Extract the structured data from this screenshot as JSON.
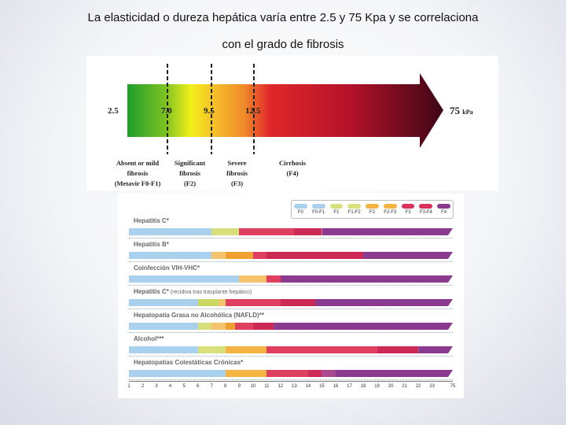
{
  "slide": {
    "title_line1": "La elasticidad o dureza hepática varía entre 2.5 y 75 Kpa y se correlaciona",
    "title_line2": "con el grado de fibrosis"
  },
  "scale": {
    "min_label": "2.5",
    "max_label": "75",
    "unit": "kPa",
    "cutoffs": [
      "7.0",
      "9.5",
      "12.5"
    ],
    "stages": [
      {
        "line1": "Absent or mild",
        "line2": "fibrosis",
        "line3": "(Metavir F0-F1)"
      },
      {
        "line1": "Significant",
        "line2": "fibrosis",
        "line3": "(F2)"
      },
      {
        "line1": "Severe",
        "line2": "fibrosis",
        "line3": "(F3)"
      },
      {
        "line1": "Cirrhosis",
        "line2": "(F4)",
        "line3": ""
      }
    ]
  },
  "chart_data": {
    "type": "bar",
    "legend": [
      {
        "label": "F0",
        "color": "#a9d0ec"
      },
      {
        "label": "F0-F1",
        "color": "#a9d0ec"
      },
      {
        "label": "F1",
        "color": "#d7e07a"
      },
      {
        "label": "F1-F2",
        "color": "#d7e07a"
      },
      {
        "label": "F2",
        "color": "#f3b443"
      },
      {
        "label": "F2-F3",
        "color": "#f3b443"
      },
      {
        "label": "F3",
        "color": "#d8325a"
      },
      {
        "label": "F3-F4",
        "color": "#d8325a"
      },
      {
        "label": "F4",
        "color": "#8a3a8f"
      }
    ],
    "x_ticks": [
      "1",
      "2",
      "3",
      "4",
      "5",
      "6",
      "7",
      "8",
      "9",
      "10",
      "11",
      "12",
      "13",
      "14",
      "15",
      "16",
      "17",
      "18",
      "19",
      "20",
      "21",
      "22",
      "23",
      "75"
    ],
    "rows": [
      {
        "label": "Hepatitis C",
        "mark": "*",
        "note": "",
        "segments": [
          {
            "from": 1,
            "to": 7,
            "color": "#a9d0ec"
          },
          {
            "from": 7,
            "to": 9,
            "color": "#d7e07a"
          },
          {
            "from": 9,
            "to": 12,
            "color": "#f3b443"
          },
          {
            "from": 9,
            "to": 13,
            "color": "#e04060"
          },
          {
            "from": 13,
            "to": 15,
            "color": "#cc2a55"
          },
          {
            "from": 15,
            "to": 75,
            "color": "#8a3a8f"
          }
        ]
      },
      {
        "label": "Hepatitis B",
        "mark": "*",
        "note": "",
        "segments": [
          {
            "from": 1,
            "to": 7,
            "color": "#a9d0ec"
          },
          {
            "from": 7,
            "to": 8,
            "color": "#f3c46b"
          },
          {
            "from": 8,
            "to": 10,
            "color": "#f0a030"
          },
          {
            "from": 10,
            "to": 11,
            "color": "#e04060"
          },
          {
            "from": 11,
            "to": 18,
            "color": "#cc2a55"
          },
          {
            "from": 18,
            "to": 75,
            "color": "#8a3a8f"
          }
        ]
      },
      {
        "label": "Coinfección VIH-VHC",
        "mark": "*",
        "note": "",
        "segments": [
          {
            "from": 1,
            "to": 9,
            "color": "#a9d0ec"
          },
          {
            "from": 9,
            "to": 11,
            "color": "#f3c46b"
          },
          {
            "from": 11,
            "to": 12,
            "color": "#e04060"
          },
          {
            "from": 12,
            "to": 75,
            "color": "#8a3a8f"
          }
        ]
      },
      {
        "label": "Hepatitis C",
        "mark": "*",
        "note": "(recidiva tras trasplante hepático)",
        "segments": [
          {
            "from": 1,
            "to": 6,
            "color": "#a9d0ec"
          },
          {
            "from": 6,
            "to": 7.5,
            "color": "#c9d860"
          },
          {
            "from": 7.5,
            "to": 8,
            "color": "#f3c46b"
          },
          {
            "from": 8,
            "to": 12,
            "color": "#e04060"
          },
          {
            "from": 12,
            "to": 14.5,
            "color": "#cc2a55"
          },
          {
            "from": 14.5,
            "to": 75,
            "color": "#8a3a8f"
          }
        ]
      },
      {
        "label": "Hepatopatía Grasa no Alcohólica (NAFLD)",
        "mark": "**",
        "note": "",
        "segments": [
          {
            "from": 1,
            "to": 6,
            "color": "#a9d0ec"
          },
          {
            "from": 6,
            "to": 7,
            "color": "#d7e07a"
          },
          {
            "from": 7,
            "to": 8,
            "color": "#f3c46b"
          },
          {
            "from": 8,
            "to": 8.7,
            "color": "#f0a030"
          },
          {
            "from": 8.7,
            "to": 10,
            "color": "#e04060"
          },
          {
            "from": 10,
            "to": 11.5,
            "color": "#cc2a55"
          },
          {
            "from": 11.5,
            "to": 75,
            "color": "#8a3a8f"
          }
        ]
      },
      {
        "label": "Alcohol",
        "mark": "***",
        "note": "",
        "segments": [
          {
            "from": 1,
            "to": 6,
            "color": "#a9d0ec"
          },
          {
            "from": 6,
            "to": 8,
            "color": "#d7e07a"
          },
          {
            "from": 8,
            "to": 11,
            "color": "#f3b443"
          },
          {
            "from": 11,
            "to": 19,
            "color": "#e04060"
          },
          {
            "from": 19,
            "to": 22,
            "color": "#cc2a55"
          },
          {
            "from": 22,
            "to": 75,
            "color": "#8a3a8f"
          }
        ]
      },
      {
        "label": "Hepatopatías Colestáticas Crónicas",
        "mark": "*",
        "note": "",
        "segments": [
          {
            "from": 1,
            "to": 8,
            "color": "#a9d0ec"
          },
          {
            "from": 8,
            "to": 11,
            "color": "#f3b443"
          },
          {
            "from": 11,
            "to": 14,
            "color": "#e04060"
          },
          {
            "from": 14,
            "to": 15,
            "color": "#cc2a55"
          },
          {
            "from": 15,
            "to": 16,
            "color": "#aa4a90"
          },
          {
            "from": 16,
            "to": 75,
            "color": "#8a3a8f"
          }
        ]
      }
    ]
  }
}
